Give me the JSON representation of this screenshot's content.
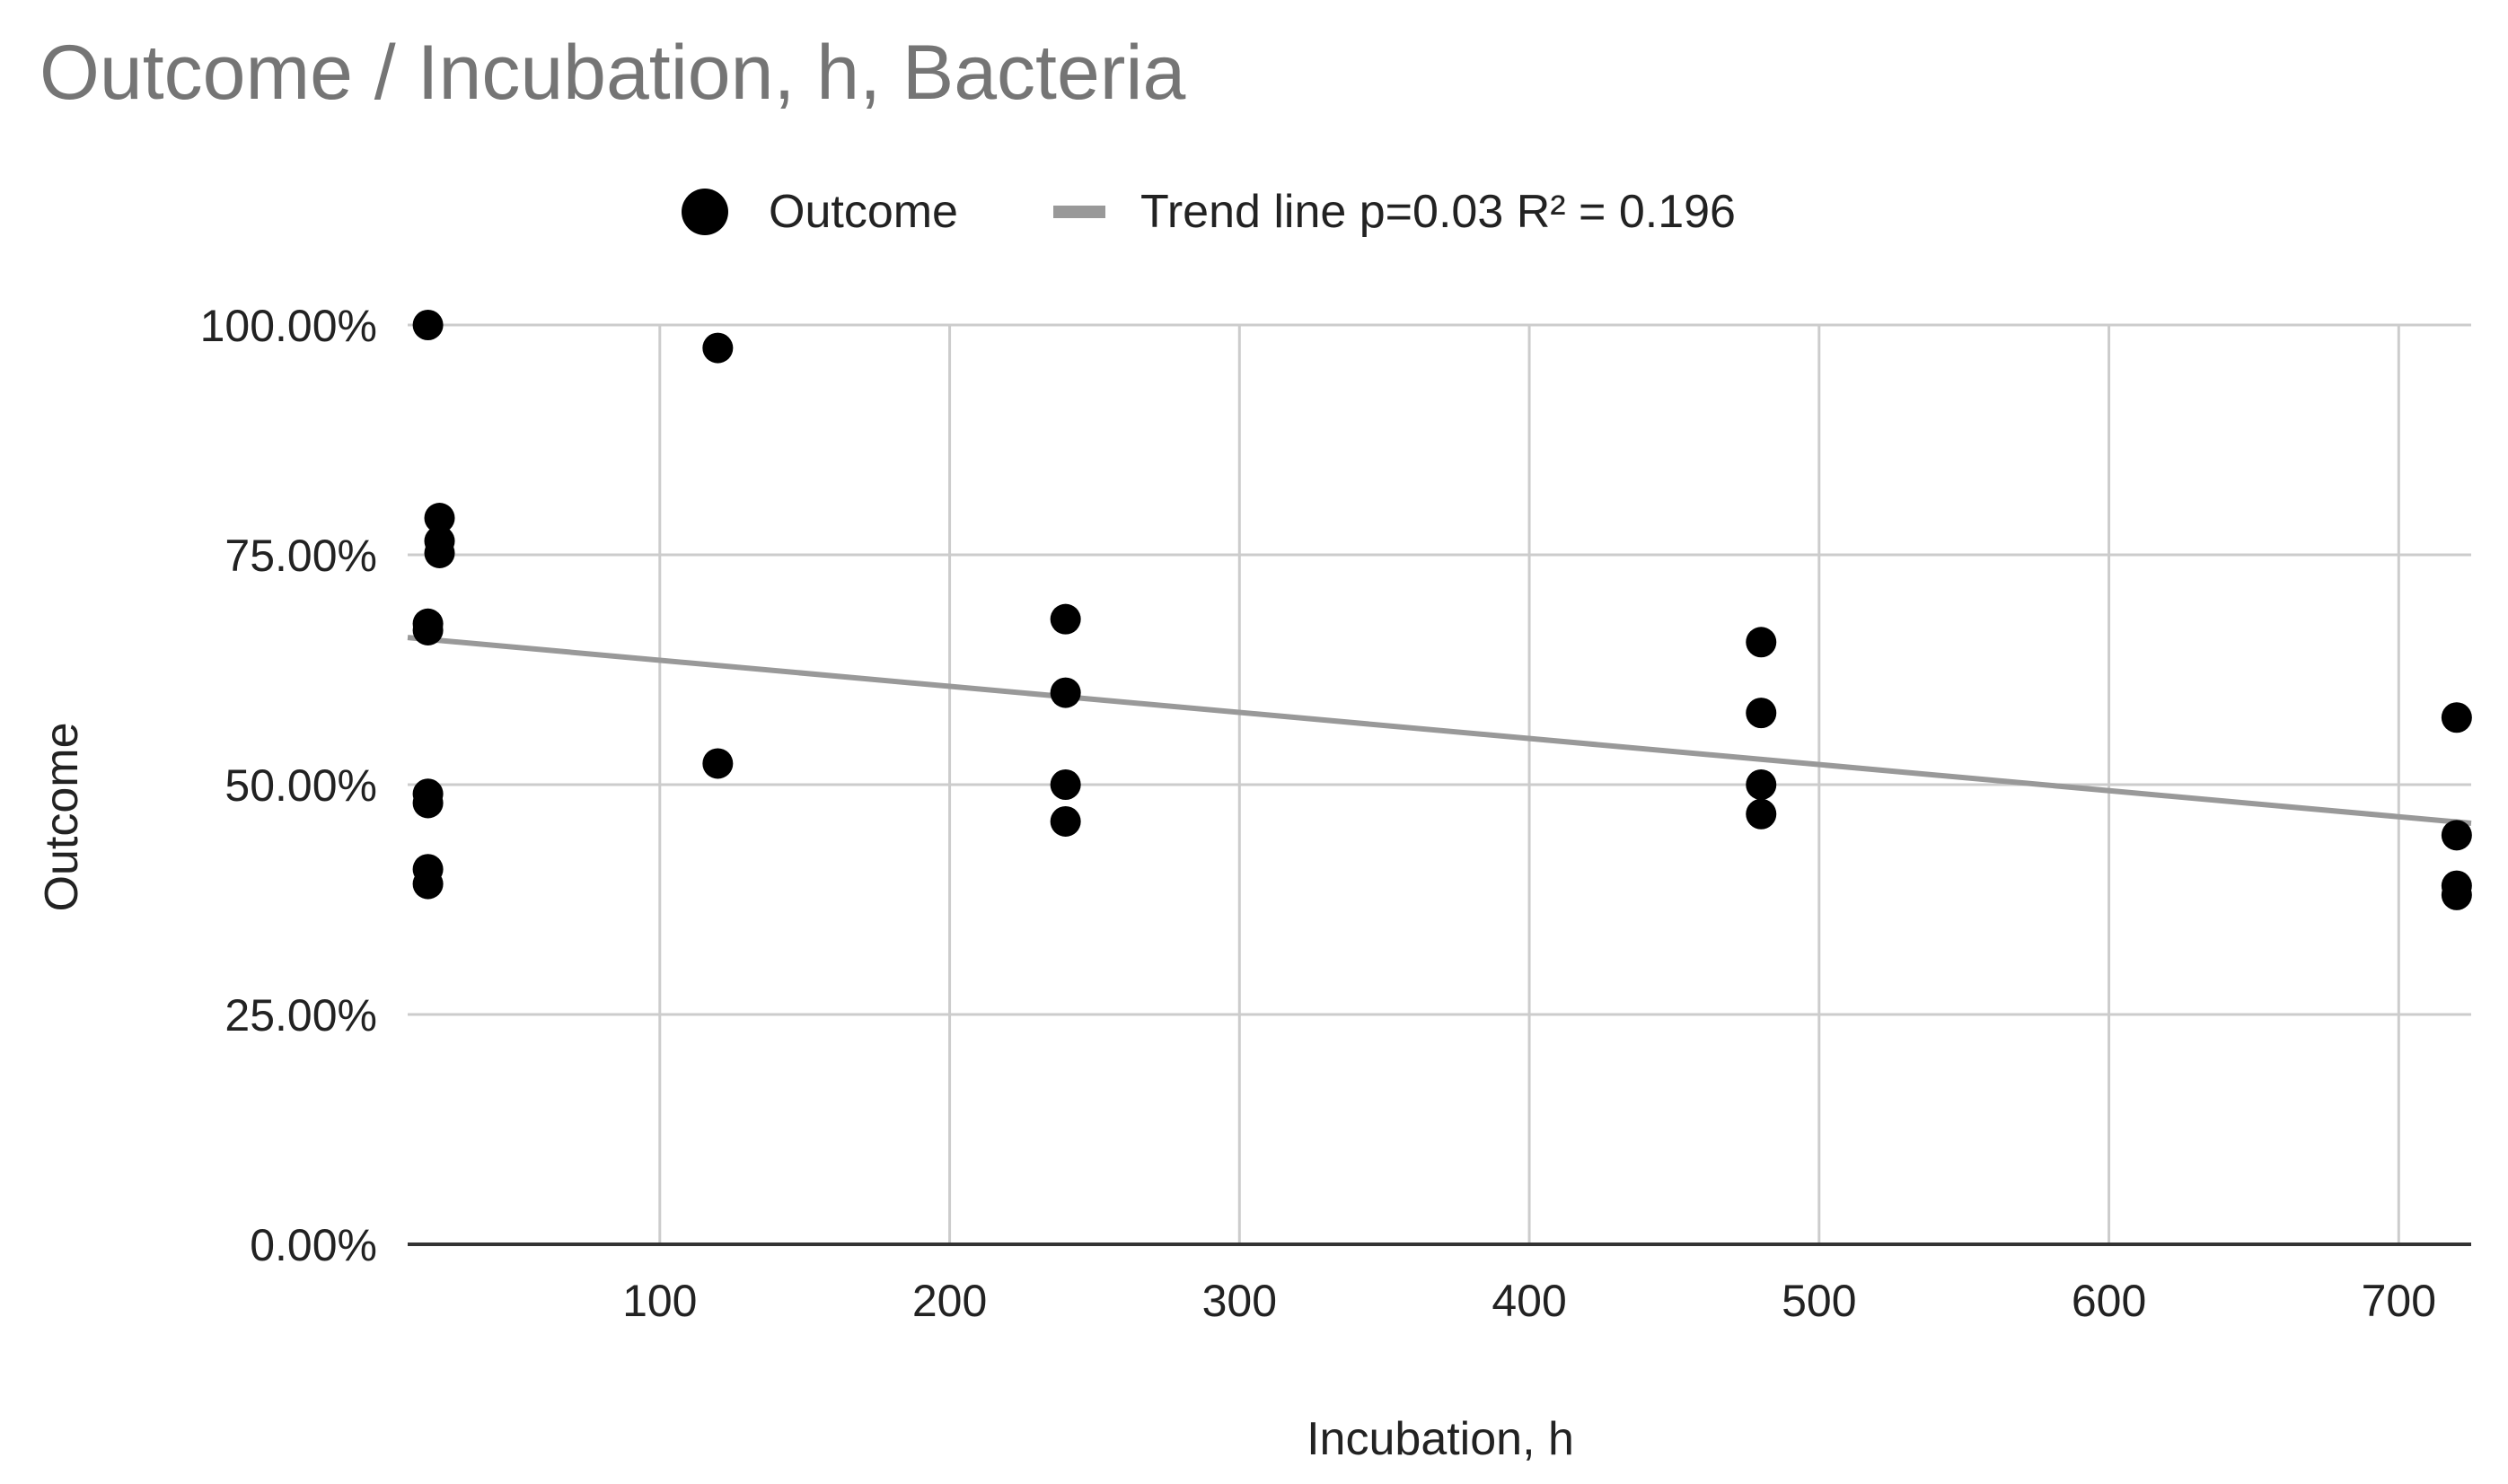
{
  "chart_data": {
    "type": "scatter",
    "title": "Outcome / Incubation, h, Bacteria",
    "xlabel": "Incubation, h",
    "ylabel": "Outcome",
    "xlim": [
      13,
      725
    ],
    "ylim": [
      0,
      1
    ],
    "x_ticks": [
      100,
      200,
      300,
      400,
      500,
      600,
      700
    ],
    "x_tick_labels": [
      "100",
      "200",
      "300",
      "400",
      "500",
      "600",
      "700"
    ],
    "y_ticks": [
      0,
      0.25,
      0.5,
      0.75,
      1
    ],
    "y_tick_labels": [
      "0.00%",
      "25.00%",
      "50.00%",
      "75.00%",
      "100.00%"
    ],
    "grid": true,
    "legend_position": "top",
    "series": [
      {
        "name": "Outcome",
        "kind": "points",
        "color": "#000000",
        "points": [
          {
            "x": 20,
            "y": 1.0
          },
          {
            "x": 24,
            "y": 0.79
          },
          {
            "x": 24,
            "y": 0.765
          },
          {
            "x": 24,
            "y": 0.752
          },
          {
            "x": 20,
            "y": 0.675
          },
          {
            "x": 20,
            "y": 0.668
          },
          {
            "x": 20,
            "y": 0.49
          },
          {
            "x": 20,
            "y": 0.48
          },
          {
            "x": 20,
            "y": 0.408
          },
          {
            "x": 20,
            "y": 0.392
          },
          {
            "x": 120,
            "y": 0.975
          },
          {
            "x": 120,
            "y": 0.523
          },
          {
            "x": 240,
            "y": 0.68
          },
          {
            "x": 240,
            "y": 0.6
          },
          {
            "x": 240,
            "y": 0.5
          },
          {
            "x": 240,
            "y": 0.46
          },
          {
            "x": 480,
            "y": 0.655
          },
          {
            "x": 480,
            "y": 0.578
          },
          {
            "x": 480,
            "y": 0.5
          },
          {
            "x": 480,
            "y": 0.468
          },
          {
            "x": 720,
            "y": 0.573
          },
          {
            "x": 720,
            "y": 0.445
          },
          {
            "x": 720,
            "y": 0.39
          },
          {
            "x": 720,
            "y": 0.38
          }
        ]
      },
      {
        "name": "Trend line p=0.03 R² = 0.196",
        "kind": "trendline",
        "color": "#999999",
        "points": [
          {
            "x": 13,
            "y": 0.66
          },
          {
            "x": 725,
            "y": 0.458
          }
        ]
      }
    ]
  }
}
